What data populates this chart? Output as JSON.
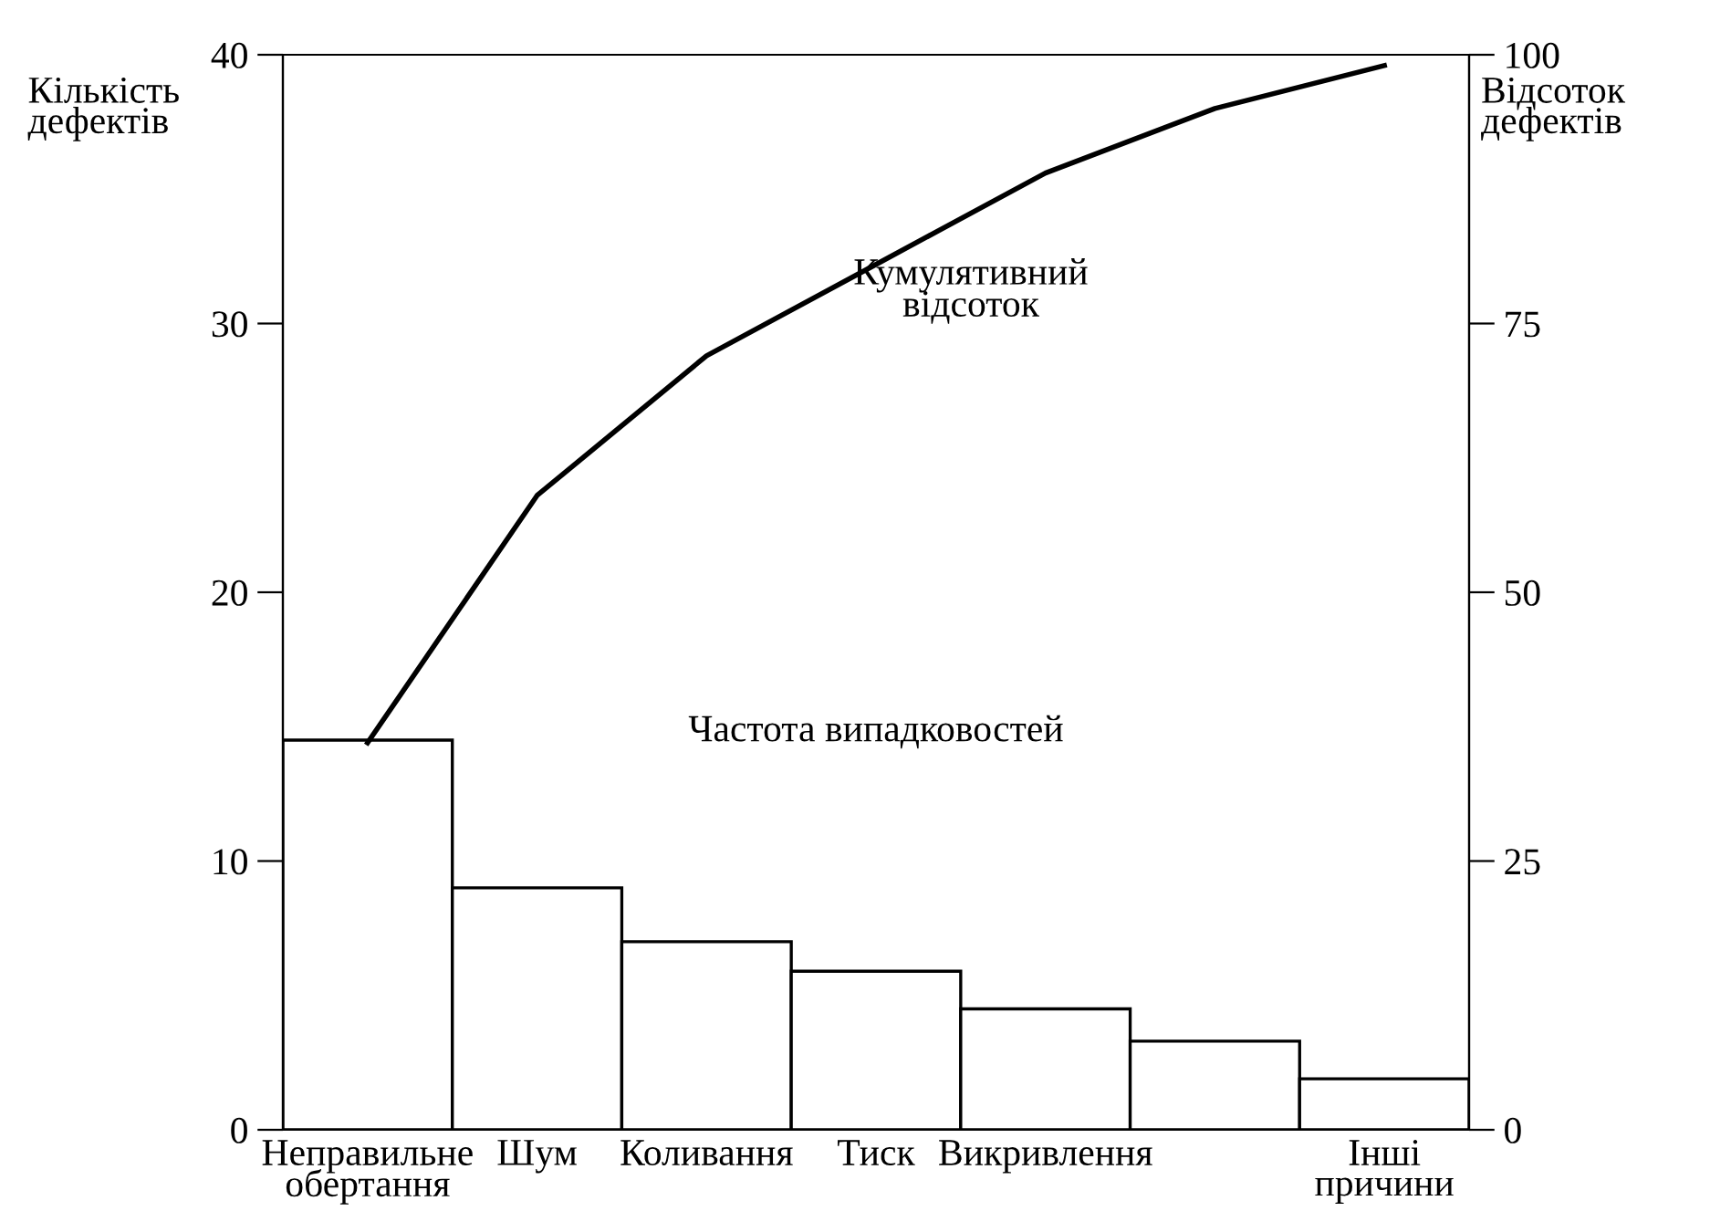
{
  "chart_data": {
    "type": "bar",
    "categories": [
      "Неправильне\nобертання",
      "Шум",
      "Коливання",
      "Тиск",
      "Викривлення",
      null,
      "Інші\nпричини"
    ],
    "series": [
      {
        "color": "#ffffff",
        "values": [
          14.5,
          9.0,
          7.0,
          5.9,
          4.5,
          3.3,
          1.9
        ]
      },
      {
        "type": "line",
        "axis": "y2",
        "color": "#000000",
        "values": [
          36,
          59,
          72,
          80.5,
          89,
          95,
          99
        ]
      }
    ],
    "annotations": [
      "Частота випадковостей",
      "Кумулятивний\nвідсоток"
    ],
    "ylabel": "Кількість\nдефектів",
    "y2label": "Відсоток\nдефектів",
    "ylim": [
      0,
      40
    ],
    "yticks": [
      0,
      10,
      20,
      30,
      40
    ],
    "y2lim": [
      0,
      100
    ],
    "y2ticks": [
      0,
      25,
      50,
      75,
      100
    ],
    "line_style": "solid"
  }
}
